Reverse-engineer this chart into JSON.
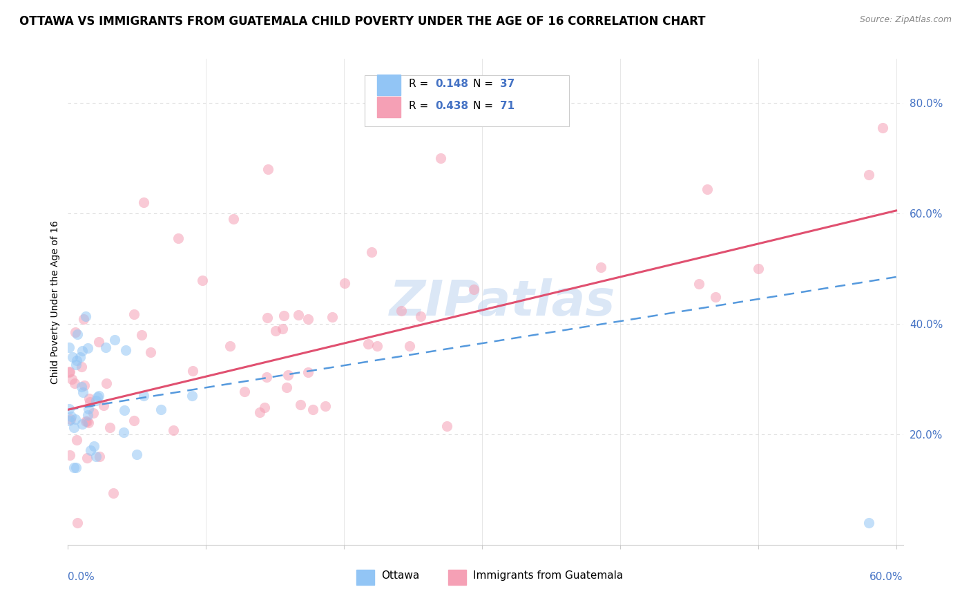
{
  "title": "OTTAWA VS IMMIGRANTS FROM GUATEMALA CHILD POVERTY UNDER THE AGE OF 16 CORRELATION CHART",
  "source": "Source: ZipAtlas.com",
  "ylabel": "Child Poverty Under the Age of 16",
  "legend_ottawa": "Ottawa",
  "legend_immigrants": "Immigrants from Guatemala",
  "R_ottawa": 0.148,
  "N_ottawa": 37,
  "R_immigrants": 0.438,
  "N_immigrants": 71,
  "ottawa_color": "#92c5f5",
  "immigrants_color": "#f5a0b5",
  "ottawa_line_color": "#5599dd",
  "immigrants_line_color": "#e05070",
  "watermark_text": "ZIPatlas",
  "watermark_color": "#b8d0ef",
  "ytick_color": "#4472c4",
  "grid_color": "#dddddd",
  "title_fontsize": 12,
  "source_fontsize": 9,
  "axis_label_fontsize": 10,
  "tick_label_fontsize": 11,
  "ottawa_trend_start_y": 0.245,
  "ottawa_trend_end_y": 0.485,
  "immigrants_trend_start_y": 0.245,
  "immigrants_trend_end_y": 0.605,
  "xlim": [
    0.0,
    0.605
  ],
  "ylim": [
    0.0,
    0.88
  ],
  "yticks": [
    0.2,
    0.4,
    0.6,
    0.8
  ],
  "ytick_labels": [
    "20.0%",
    "40.0%",
    "60.0%",
    "80.0%"
  ],
  "xtick_positions": [
    0.0,
    0.1,
    0.2,
    0.3,
    0.4,
    0.5,
    0.6
  ],
  "scatter_size": 120,
  "scatter_alpha": 0.55
}
